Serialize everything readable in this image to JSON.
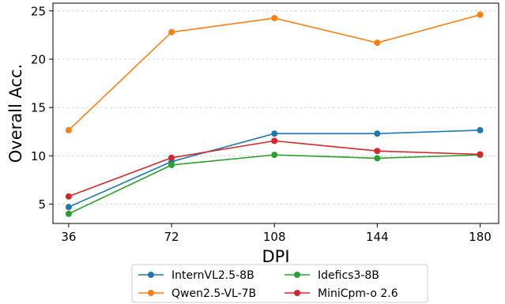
{
  "chart_data": {
    "type": "line",
    "xlabel": "DPI",
    "ylabel": "Overall Acc.",
    "x": [
      36,
      72,
      108,
      144,
      180
    ],
    "x_tick_labels": [
      "36",
      "72",
      "108",
      "144",
      "180"
    ],
    "y_ticks": [
      5,
      10,
      15,
      20,
      25
    ],
    "y_tick_labels": [
      "5",
      "10",
      "15",
      "20",
      "25"
    ],
    "xlim": [
      30.5,
      186.5
    ],
    "ylim": [
      3,
      25.8
    ],
    "grid": "horizontal dashed",
    "legend_position": "bottom-center, 2 columns",
    "series": [
      {
        "name": "InternVL2.5-8B",
        "color": "#1f77b4",
        "values": [
          4.7,
          9.4,
          12.3,
          12.3,
          12.65
        ]
      },
      {
        "name": "Qwen2.5-VL-7B",
        "color": "#ff7f0e",
        "values": [
          12.65,
          22.8,
          24.25,
          21.7,
          24.6
        ]
      },
      {
        "name": "Idefics3-8B",
        "color": "#2ca02c",
        "values": [
          4.0,
          9.05,
          10.1,
          9.75,
          10.1
        ]
      },
      {
        "name": "MiniCpm-o 2.6",
        "color": "#d62728",
        "values": [
          5.8,
          9.8,
          11.55,
          10.5,
          10.15
        ]
      }
    ]
  }
}
